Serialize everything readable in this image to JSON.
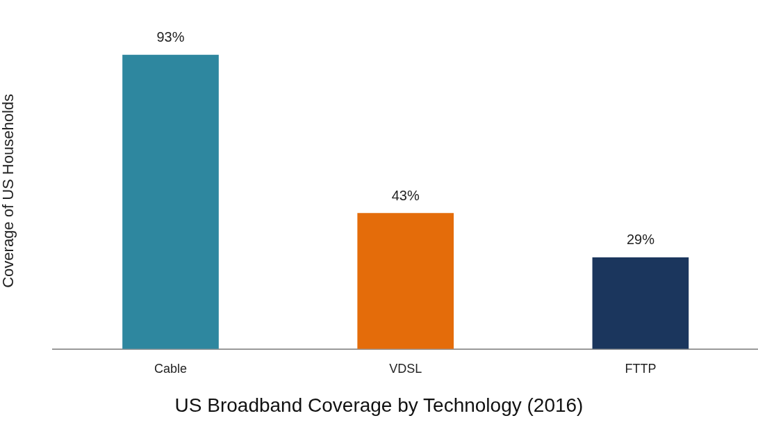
{
  "chart_data": {
    "type": "bar",
    "title": "US Broadband Coverage by Technology (2016)",
    "ylabel": "Coverage of US Households",
    "categories": [
      "Cable",
      "VDSL",
      "FTTP"
    ],
    "values": [
      93,
      43,
      29
    ],
    "colors": [
      "#2e879f",
      "#e46c0a",
      "#1b365d"
    ],
    "value_labels": [
      "93%",
      "43%",
      "29%"
    ],
    "grid": false,
    "legend": false
  }
}
